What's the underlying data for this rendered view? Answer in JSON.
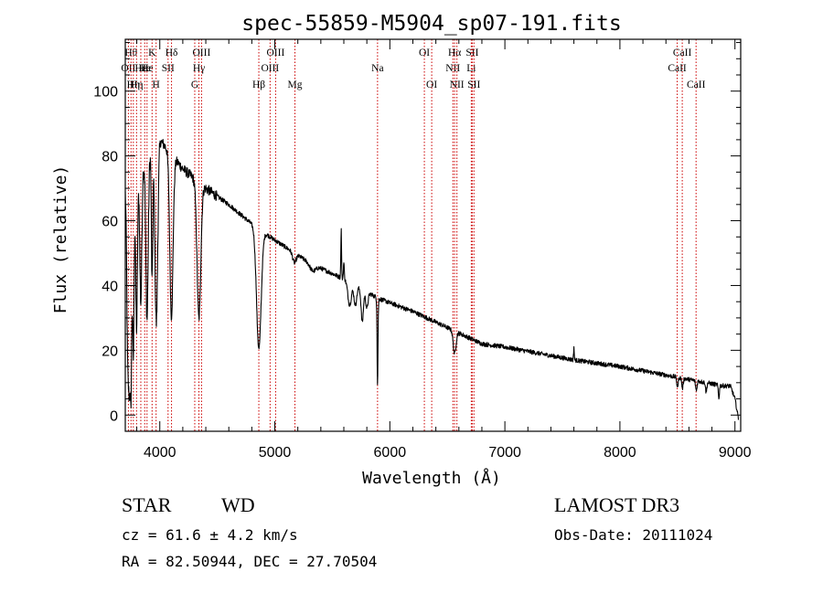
{
  "colors": {
    "axis": "#000000",
    "spectrum": "#000000",
    "line_marker": "#cc0000",
    "background": "#ffffff"
  },
  "chart_data": {
    "type": "line",
    "title": "spec-55859-M5904_sp07-191.fits",
    "xlabel": "Wavelength (Å)",
    "ylabel": "Flux (relative)",
    "xlim": [
      3700,
      9050
    ],
    "ylim": [
      -5,
      116
    ],
    "x_ticks": [
      {
        "value": 4000,
        "label": "4000"
      },
      {
        "value": 5000,
        "label": "5000"
      },
      {
        "value": 6000,
        "label": "6000"
      },
      {
        "value": 7000,
        "label": "7000"
      },
      {
        "value": 8000,
        "label": "8000"
      },
      {
        "value": 9000,
        "label": "9000"
      }
    ],
    "y_ticks": [
      {
        "value": 0,
        "label": "0"
      },
      {
        "value": 20,
        "label": "20"
      },
      {
        "value": 40,
        "label": "40"
      },
      {
        "value": 60,
        "label": "60"
      },
      {
        "value": 80,
        "label": "80"
      },
      {
        "value": 100,
        "label": "100"
      }
    ],
    "grid": false,
    "series": [
      {
        "name": "spectrum",
        "continuum": [
          [
            3700,
            70
          ],
          [
            3900,
            80
          ],
          [
            4000,
            85
          ],
          [
            4200,
            76
          ],
          [
            4400,
            70
          ],
          [
            4600,
            65
          ],
          [
            4800,
            59
          ],
          [
            5000,
            54
          ],
          [
            5300,
            47
          ],
          [
            5600,
            42
          ],
          [
            5900,
            36
          ],
          [
            6200,
            32
          ],
          [
            6500,
            27
          ],
          [
            6800,
            22
          ],
          [
            7000,
            21
          ],
          [
            7300,
            19
          ],
          [
            7600,
            17
          ],
          [
            8000,
            15
          ],
          [
            8300,
            13
          ],
          [
            8600,
            11
          ],
          [
            8900,
            9
          ],
          [
            8960,
            9
          ],
          [
            9000,
            5
          ],
          [
            9030,
            -1
          ]
        ],
        "absorption_features": [
          {
            "center": 3720,
            "width": 8,
            "depth": 45
          },
          {
            "center": 3735,
            "width": 8,
            "depth": 52
          },
          {
            "center": 3750,
            "width": 7,
            "depth": 58
          },
          {
            "center": 3770,
            "width": 7,
            "depth": 55
          },
          {
            "center": 3798,
            "width": 8,
            "depth": 48
          },
          {
            "center": 3835,
            "width": 9,
            "depth": 42
          },
          {
            "center": 3889,
            "width": 10,
            "depth": 50
          },
          {
            "center": 3933,
            "width": 6,
            "depth": 40
          },
          {
            "center": 3970,
            "width": 12,
            "depth": 55
          },
          {
            "center": 4101,
            "width": 14,
            "depth": 50
          },
          {
            "center": 4340,
            "width": 16,
            "depth": 42
          },
          {
            "center": 4861,
            "width": 20,
            "depth": 37
          },
          {
            "center": 5170,
            "width": 15,
            "depth": 3
          },
          {
            "center": 5330,
            "width": 25,
            "depth": 2
          },
          {
            "center": 5650,
            "width": 15,
            "depth": 7
          },
          {
            "center": 5700,
            "width": 12,
            "depth": 6
          },
          {
            "center": 5760,
            "width": 10,
            "depth": 10
          },
          {
            "center": 5800,
            "width": 10,
            "depth": 5
          },
          {
            "center": 5893,
            "width": 4,
            "depth": 27
          },
          {
            "center": 6563,
            "width": 12,
            "depth": 7
          },
          {
            "center": 8500,
            "width": 6,
            "depth": 3
          },
          {
            "center": 8544,
            "width": 6,
            "depth": 3
          },
          {
            "center": 8664,
            "width": 6,
            "depth": 3
          },
          {
            "center": 8750,
            "width": 5,
            "depth": 3
          },
          {
            "center": 8860,
            "width": 5,
            "depth": 4
          }
        ],
        "emission_features": [
          {
            "center": 5577,
            "width": 3,
            "height": 15
          },
          {
            "center": 5600,
            "width": 4,
            "height": 5
          },
          {
            "center": 7600,
            "width": 3,
            "height": 4
          }
        ]
      }
    ],
    "line_markers": [
      {
        "wl": 3727,
        "label": "OII",
        "row": 1
      },
      {
        "wl": 3750,
        "label": "Hθ",
        "row": 0
      },
      {
        "wl": 3770,
        "label": "Hη",
        "row": 2
      },
      {
        "wl": 3798,
        "label": "Hη",
        "row": 2
      },
      {
        "wl": 3835,
        "label": "Hε",
        "row": 1
      },
      {
        "wl": 3869,
        "label": "He",
        "row": 1
      },
      {
        "wl": 3889,
        "label": "He",
        "row": 1
      },
      {
        "wl": 3933,
        "label": "K",
        "row": 0
      },
      {
        "wl": 3968,
        "label": "H",
        "row": 2
      },
      {
        "wl": 4072,
        "label": "SII",
        "row": 1
      },
      {
        "wl": 4102,
        "label": "Hδ",
        "row": 0
      },
      {
        "wl": 4304,
        "label": "G",
        "row": 2
      },
      {
        "wl": 4340,
        "label": "Hγ",
        "row": 1
      },
      {
        "wl": 4363,
        "label": "OIII",
        "row": 0
      },
      {
        "wl": 4861,
        "label": "Hβ",
        "row": 2
      },
      {
        "wl": 4959,
        "label": "OIII",
        "row": 1
      },
      {
        "wl": 5007,
        "label": "OIII",
        "row": 0
      },
      {
        "wl": 5175,
        "label": "Mg",
        "row": 2
      },
      {
        "wl": 5893,
        "label": "Na",
        "row": 1
      },
      {
        "wl": 6300,
        "label": "OI",
        "row": 0
      },
      {
        "wl": 6364,
        "label": "OI",
        "row": 2
      },
      {
        "wl": 6548,
        "label": "NII",
        "row": 1
      },
      {
        "wl": 6563,
        "label": "Hα",
        "row": 0
      },
      {
        "wl": 6583,
        "label": "NII",
        "row": 2
      },
      {
        "wl": 6708,
        "label": "Li",
        "row": 1
      },
      {
        "wl": 6716,
        "label": "SII",
        "row": 0
      },
      {
        "wl": 6731,
        "label": "SII",
        "row": 2
      },
      {
        "wl": 8498,
        "label": "CaII",
        "row": 1
      },
      {
        "wl": 8542,
        "label": "CaII",
        "row": 0
      },
      {
        "wl": 8662,
        "label": "CaII",
        "row": 2
      }
    ]
  },
  "info": {
    "class_label": "STAR",
    "subclass_label": "WD",
    "cz_line": "cz = 61.6 ± 4.2 km/s",
    "radec_line": "RA =  82.50944, DEC =  27.70504",
    "survey_label": "LAMOST DR3",
    "obs_date_line": "Obs-Date: 20111024"
  }
}
